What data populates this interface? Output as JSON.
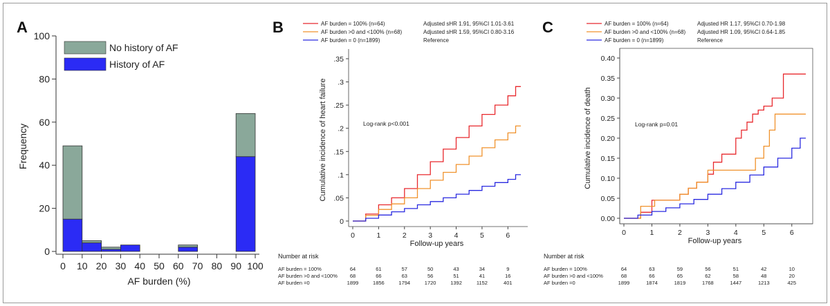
{
  "chart_data": [
    {
      "type": "bar",
      "stacked": true,
      "panel_label": "A",
      "xlabel": "AF burden (%)",
      "ylabel": "Frequency",
      "xlim": [
        0,
        100
      ],
      "ylim": [
        0,
        100
      ],
      "x_ticks": [
        "0",
        "10",
        "20",
        "30",
        "40",
        "50",
        "60",
        "70",
        "80",
        "90",
        "100"
      ],
      "y_ticks": [
        "0",
        "20",
        "40",
        "60",
        "80",
        "100"
      ],
      "bins": [
        {
          "from": 0,
          "to": 10
        },
        {
          "from": 10,
          "to": 20
        },
        {
          "from": 20,
          "to": 30
        },
        {
          "from": 30,
          "to": 40
        },
        {
          "from": 40,
          "to": 50
        },
        {
          "from": 50,
          "to": 60
        },
        {
          "from": 60,
          "to": 70
        },
        {
          "from": 70,
          "to": 80
        },
        {
          "from": 80,
          "to": 90
        },
        {
          "from": 90,
          "to": 100
        }
      ],
      "series": [
        {
          "name": "History of AF",
          "color": "#2b2bf5",
          "values": [
            15,
            4,
            1,
            3,
            0,
            0,
            2,
            0,
            0,
            44
          ]
        },
        {
          "name": "No history of AF",
          "color": "#8aa89a",
          "values": [
            34,
            1,
            1,
            0,
            0,
            0,
            1,
            0,
            0,
            20
          ]
        }
      ],
      "legend": {
        "placement": "top-left",
        "items": [
          "No history of AF",
          "History of AF"
        ]
      },
      "grid": false
    },
    {
      "type": "line",
      "step": true,
      "panel_label": "B",
      "xlabel": "Follow-up years",
      "ylabel": "Cumulative incidence of heart failure",
      "xlim": [
        0,
        6.5
      ],
      "ylim": [
        0,
        0.35
      ],
      "x_ticks": [
        "0",
        "1",
        "2",
        "3",
        "4",
        "5",
        "6"
      ],
      "y_ticks": [
        "0",
        ".05",
        ".1",
        ".15",
        ".2",
        ".25",
        ".3",
        ".35"
      ],
      "annotation": "Log-rank p<0.001",
      "series": [
        {
          "name": "AF burden = 100% (n=64)",
          "color": "#e8282d",
          "effect": "Adjusted sHR 1.91, 95%CI 1.01-3.61",
          "x": [
            0,
            0.5,
            1,
            1.5,
            2,
            2.5,
            3,
            3.5,
            4,
            4.5,
            5,
            5.5,
            6,
            6.3,
            6.5
          ],
          "y": [
            0,
            0.015,
            0.035,
            0.05,
            0.07,
            0.1,
            0.128,
            0.155,
            0.18,
            0.205,
            0.23,
            0.25,
            0.27,
            0.29,
            0.29
          ]
        },
        {
          "name": "AF burden >0 and <100% (n=68)",
          "color": "#f0922c",
          "effect": "Adjusted sHR 1.59, 95%CI 0.80-3.16",
          "x": [
            0,
            0.5,
            1,
            1.5,
            2,
            2.5,
            3,
            3.5,
            4,
            4.5,
            5,
            5.5,
            6,
            6.3,
            6.5
          ],
          "y": [
            0,
            0.012,
            0.025,
            0.037,
            0.05,
            0.07,
            0.088,
            0.105,
            0.122,
            0.14,
            0.158,
            0.175,
            0.19,
            0.205,
            0.205
          ]
        },
        {
          "name": "AF burden = 0 (n=1899)",
          "color": "#2a2ae0",
          "effect": "Reference",
          "x": [
            0,
            0.5,
            1,
            1.5,
            2,
            2.5,
            3,
            3.5,
            4,
            4.5,
            5,
            5.5,
            6,
            6.3,
            6.5
          ],
          "y": [
            0,
            0.006,
            0.013,
            0.02,
            0.027,
            0.035,
            0.042,
            0.05,
            0.058,
            0.066,
            0.075,
            0.083,
            0.09,
            0.1,
            0.1
          ]
        }
      ],
      "legend": {
        "placement": "top",
        "items": [
          "AF burden = 100% (n=64)",
          "AF burden >0 and <100% (n=68)",
          "AF burden = 0 (n=1899)"
        ]
      },
      "risk_table": {
        "title": "Number at risk",
        "rows": [
          {
            "label": "AF burden = 100%",
            "values": [
              "64",
              "61",
              "57",
              "50",
              "43",
              "34",
              "9"
            ]
          },
          {
            "label": "AF burden >0 and <100%",
            "values": [
              "68",
              "66",
              "63",
              "56",
              "51",
              "41",
              "16"
            ]
          },
          {
            "label": "AF burden =0",
            "values": [
              "1899",
              "1856",
              "1794",
              "1720",
              "1392",
              "1152",
              "401"
            ]
          }
        ]
      },
      "grid": false
    },
    {
      "type": "line",
      "step": true,
      "panel_label": "C",
      "xlabel": "Follow-up years",
      "ylabel": "Cumulative incidence of death",
      "xlim": [
        0,
        6.5
      ],
      "ylim": [
        0,
        0.4
      ],
      "x_ticks": [
        "0",
        "1",
        "2",
        "3",
        "4",
        "5",
        "6"
      ],
      "y_ticks": [
        "0.00",
        "0.05",
        "0.10",
        "0.15",
        "0.20",
        "0.25",
        "0.30",
        "0.35",
        "0.40"
      ],
      "annotation": "Log-rank p=0.01",
      "series": [
        {
          "name": "AF burden = 100% (n=64)",
          "color": "#e8282d",
          "effect": "Adjusted HR 1.17, 95%CI 0.70-1.98",
          "x": [
            0,
            0.6,
            1.0,
            2.0,
            2.3,
            2.6,
            3.0,
            3.2,
            3.5,
            4.0,
            4.2,
            4.4,
            4.6,
            4.8,
            5.0,
            5.3,
            5.7,
            6.5
          ],
          "y": [
            0,
            0.015,
            0.045,
            0.06,
            0.075,
            0.09,
            0.11,
            0.14,
            0.16,
            0.2,
            0.22,
            0.24,
            0.26,
            0.27,
            0.28,
            0.3,
            0.36,
            0.36
          ]
        },
        {
          "name": "AF burden >0 and <100% (n=68)",
          "color": "#f0922c",
          "effect": "Adjusted HR 1.09, 95%CI 0.64-1.85",
          "x": [
            0,
            0.6,
            1.1,
            2.0,
            2.3,
            2.6,
            3.0,
            4.5,
            4.7,
            5.0,
            5.2,
            5.4,
            6.5
          ],
          "y": [
            0,
            0.03,
            0.045,
            0.06,
            0.075,
            0.09,
            0.12,
            0.12,
            0.15,
            0.18,
            0.22,
            0.26,
            0.26
          ]
        },
        {
          "name": "AF burden = 0 (n=1899)",
          "color": "#2a2ae0",
          "effect": "Reference",
          "x": [
            0,
            0.5,
            1,
            1.5,
            2,
            2.5,
            3,
            3.5,
            4,
            4.5,
            5,
            5.5,
            6,
            6.3,
            6.5
          ],
          "y": [
            0,
            0.008,
            0.017,
            0.026,
            0.036,
            0.047,
            0.06,
            0.074,
            0.09,
            0.108,
            0.128,
            0.15,
            0.175,
            0.2,
            0.2
          ]
        }
      ],
      "legend": {
        "placement": "top",
        "items": [
          "AF burden = 100% (n=64)",
          "AF burden >0 and <100% (n=68)",
          "AF burden = 0 (n=1899)"
        ]
      },
      "risk_table": {
        "title": "Number at risk",
        "rows": [
          {
            "label": "AF burden = 100%",
            "values": [
              "64",
              "63",
              "59",
              "56",
              "51",
              "42",
              "10"
            ]
          },
          {
            "label": "AF burden >0 and <100%",
            "values": [
              "68",
              "66",
              "65",
              "62",
              "58",
              "48",
              "20"
            ]
          },
          {
            "label": "AF burden =0",
            "values": [
              "1899",
              "1874",
              "1819",
              "1768",
              "1447",
              "1213",
              "425"
            ]
          }
        ]
      },
      "grid": false
    }
  ]
}
